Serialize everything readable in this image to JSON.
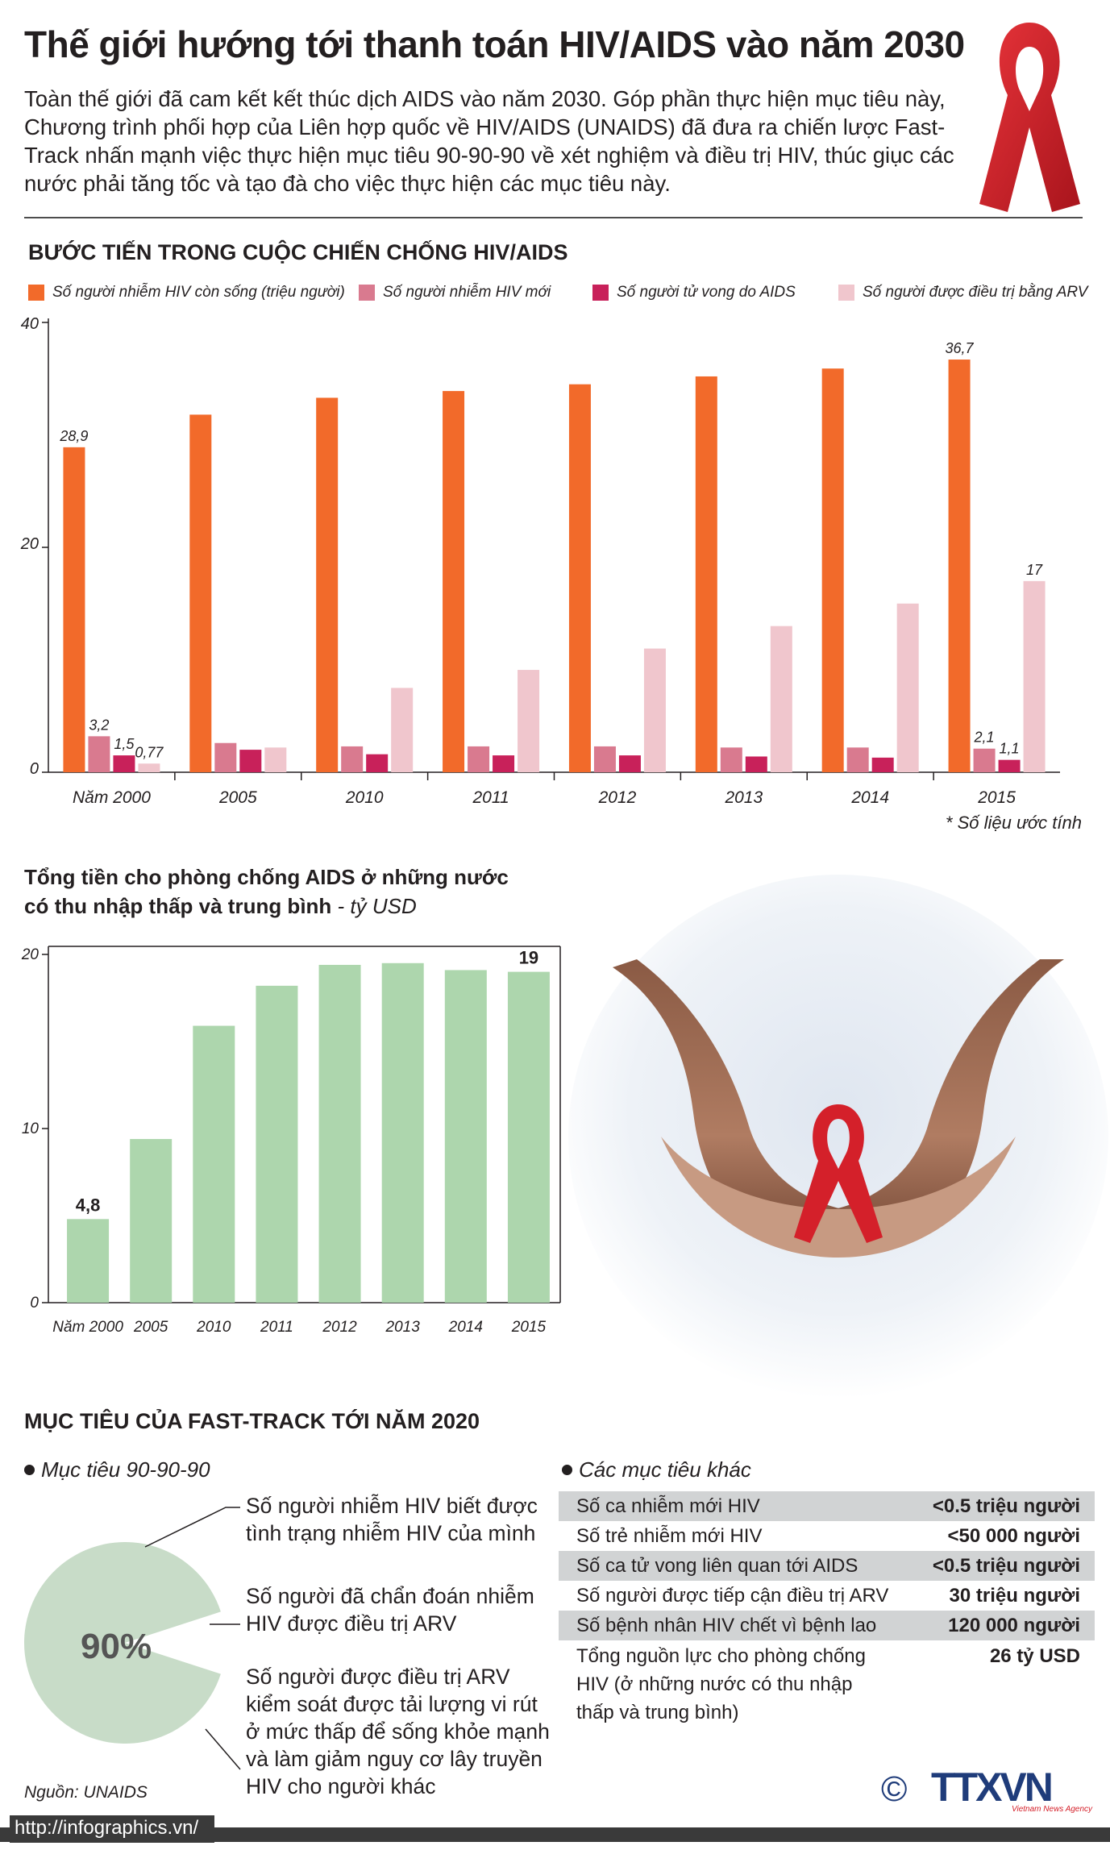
{
  "header": {
    "title": "Thế giới hướng tới thanh toán HIV/AIDS vào năm 2030",
    "intro": "Toàn thế giới đã cam kết kết thúc dịch AIDS vào năm 2030. Góp phần thực hiện mục tiêu này, Chương trình phối hợp của Liên hợp quốc về HIV/AIDS (UNAIDS) đã đưa ra chiến lược Fast-Track nhấn mạnh việc thực hiện mục tiêu 90-90-90 về xét nghiệm và điều trị HIV, thúc giục các nước phải tăng tốc và tạo đà cho việc thực hiện các mục tiêu này."
  },
  "section1": {
    "title": "BƯỚC TIẾN TRONG CUỘC CHIẾN CHỐNG HIV/AIDS",
    "note": "* Số liệu ước tính"
  },
  "section2": {
    "title_line1": "Tổng tiền cho phòng chống AIDS ở những nước",
    "title_line2": "có thu nhập thấp và trung bình",
    "unit": " - tỷ USD"
  },
  "section3": {
    "title": "MỤC TIÊU CỦA FAST-TRACK TỚI NĂM 2020",
    "goal_head": "Mục tiêu  90-90-90",
    "goals": [
      "Số người nhiễm HIV biết được tình trạng nhiễm HIV của mình",
      "Số người đã chẩn đoán nhiễm HIV được điều trị ARV",
      "Số người được điều trị ARV kiểm soát được tải lượng vi rút ở mức thấp để sống khỏe mạnh và làm giảm nguy cơ lây truyền HIV cho người khác"
    ],
    "pie_label": "90%",
    "pie_fraction": 0.9,
    "other_head": "Các mục tiêu khác",
    "targets": [
      {
        "label": "Số ca nhiễm mới HIV",
        "value": "<0.5 triệu người"
      },
      {
        "label": "Số trẻ nhiễm mới HIV",
        "value": "<50 000 người"
      },
      {
        "label": "Số ca tử vong liên quan tới AIDS",
        "value": "<0.5 triệu người"
      },
      {
        "label": "Số người được tiếp cận điều trị ARV",
        "value": "30 triệu người"
      },
      {
        "label": "Số bệnh nhân HIV chết vì bệnh lao",
        "value": "120 000 người"
      },
      {
        "label": "Tổng nguồn lực cho phòng chống HIV (ở những nước có thu nhập thấp và trung bình)",
        "value": "26 tỷ USD"
      }
    ],
    "source": "Nguồn: UNAIDS"
  },
  "footer": {
    "url": "http://infographics.vn/",
    "copyright": "©",
    "brand": "TTXVN",
    "brand_sub": "Vietnam News Agency"
  },
  "colors": {
    "living": "#f26a2a",
    "new": "#d97a8f",
    "deaths": "#c8215a",
    "arv": "#f0c6cd",
    "funding": "#add6ad",
    "ribbon": "#d4202a"
  },
  "chart_data": [
    {
      "type": "bar",
      "title": "BƯỚC TIẾN TRONG CUỘC CHIẾN CHỐNG HIV/AIDS",
      "categories": [
        "Năm 2000",
        "2005",
        "2010",
        "2011",
        "2012",
        "2013",
        "2014",
        "2015"
      ],
      "ylim": [
        0,
        40
      ],
      "yticks": [
        "0",
        "20",
        "40"
      ],
      "legend_position": "top",
      "series": [
        {
          "name": "Số người nhiễm HIV còn sống (triệu người)",
          "values": [
            28.9,
            31.8,
            33.3,
            33.9,
            34.5,
            35.2,
            35.9,
            36.7
          ],
          "labels": [
            "28,9",
            "",
            "",
            "",
            "",
            "",
            "",
            "36,7"
          ]
        },
        {
          "name": "Số người nhiễm HIV mới",
          "values": [
            3.2,
            2.6,
            2.3,
            2.3,
            2.3,
            2.2,
            2.2,
            2.1
          ],
          "labels": [
            "3,2",
            "",
            "",
            "",
            "",
            "",
            "",
            "2,1"
          ]
        },
        {
          "name": "Số người tử vong do AIDS",
          "values": [
            1.5,
            2.0,
            1.6,
            1.5,
            1.5,
            1.4,
            1.3,
            1.1
          ],
          "labels": [
            "1,5",
            "",
            "",
            "",
            "",
            "",
            "",
            "1,1"
          ]
        },
        {
          "name": "Số người được điều trị bằng ARV",
          "values": [
            0.77,
            2.2,
            7.5,
            9.1,
            11.0,
            13.0,
            15.0,
            17.0
          ],
          "labels": [
            "0,77",
            "",
            "",
            "",
            "",
            "",
            "",
            "17"
          ]
        }
      ]
    },
    {
      "type": "bar",
      "title": "Tổng tiền cho phòng chống AIDS ở những nước có thu nhập thấp và trung bình - tỷ USD",
      "categories": [
        "Năm 2000",
        "2005",
        "2010",
        "2011",
        "2012",
        "2013",
        "2014",
        "2015"
      ],
      "ylim": [
        0,
        20
      ],
      "yticks": [
        "0",
        "10",
        "20"
      ],
      "values": [
        4.8,
        9.4,
        15.9,
        18.2,
        19.4,
        19.5,
        19.1,
        19.0
      ],
      "labels": [
        "4,8",
        "",
        "",
        "",
        "",
        "",
        "",
        "19"
      ]
    }
  ]
}
